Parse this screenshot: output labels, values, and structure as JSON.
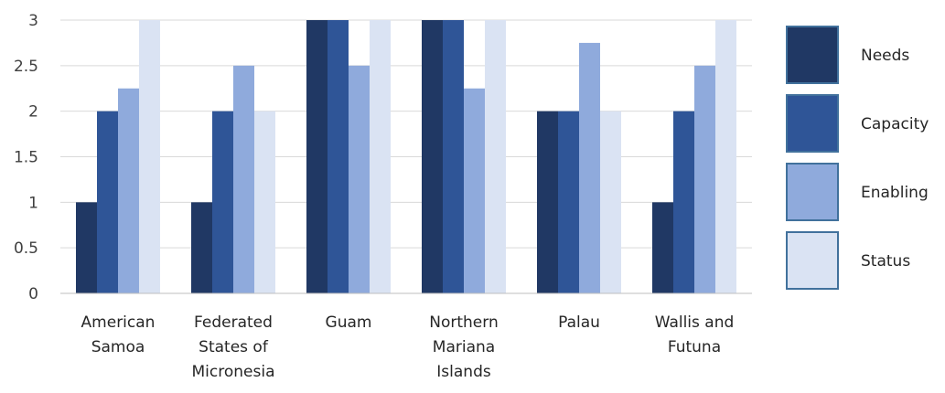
{
  "chart_data": {
    "type": "bar",
    "categories": [
      [
        "American",
        "Samoa"
      ],
      [
        "Federated",
        "States of",
        "Micronesia"
      ],
      [
        "Guam"
      ],
      [
        "Northern",
        "Mariana",
        "Islands"
      ],
      [
        "Palau"
      ],
      [
        "Wallis and",
        "Futuna"
      ]
    ],
    "series": [
      {
        "name": "Needs",
        "color": "#203864",
        "values": [
          1,
          1,
          3,
          3,
          2,
          1
        ]
      },
      {
        "name": "Capacity",
        "color": "#2f5597",
        "values": [
          2,
          2,
          3,
          3,
          2,
          2
        ]
      },
      {
        "name": "Enabling",
        "color": "#8faadc",
        "values": [
          2.25,
          2.5,
          2.5,
          2.25,
          2.75,
          2.5
        ]
      },
      {
        "name": "Status",
        "color": "#dae3f3",
        "values": [
          3,
          2,
          3,
          3,
          2,
          3
        ]
      }
    ],
    "yticks": [
      "0",
      "0.5",
      "1",
      "1.5",
      "2",
      "2.5",
      "3"
    ],
    "ylim": [
      0,
      3
    ],
    "title": "",
    "xlabel": "",
    "ylabel": "",
    "grid": true,
    "legend_position": "right"
  }
}
